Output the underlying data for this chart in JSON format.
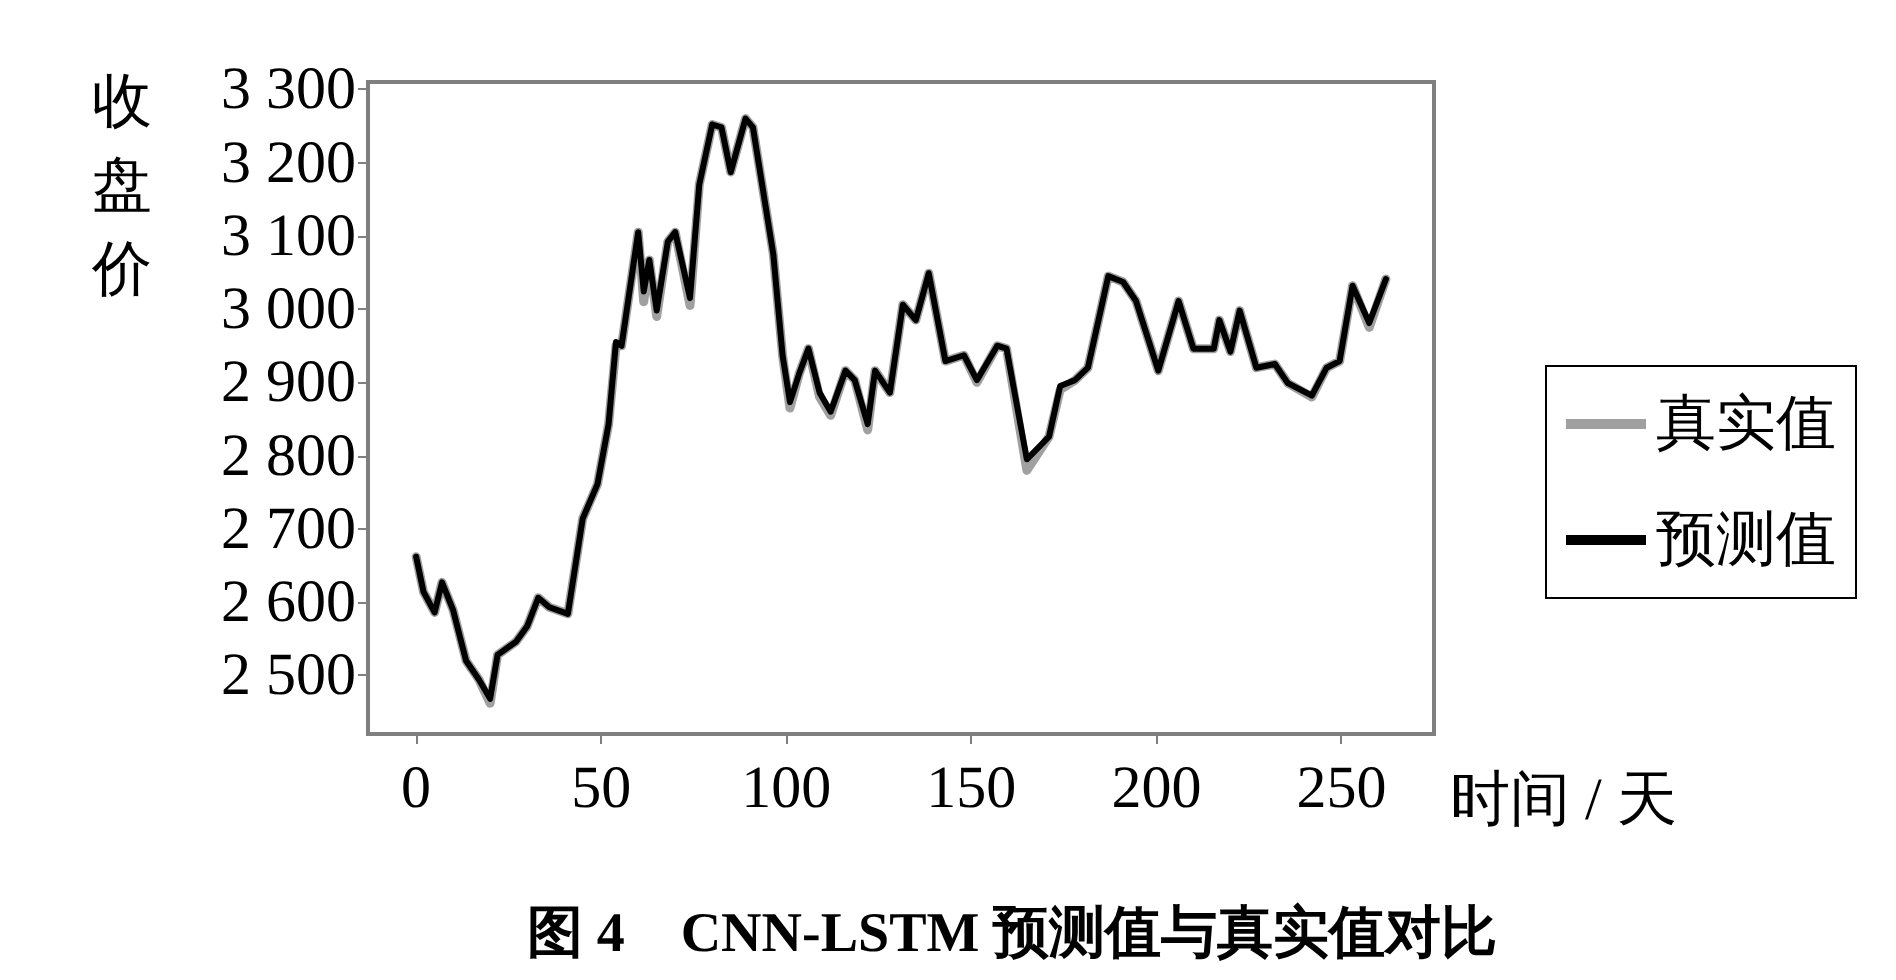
{
  "chart_data": {
    "type": "line",
    "title": "图 4　CNN-LSTM 预测值与真实值对比",
    "xlabel": "时间 / 天",
    "ylabel": "收盘价",
    "x": [
      0,
      2,
      5,
      7,
      10,
      13.5,
      17,
      20,
      22,
      27,
      30,
      33,
      36,
      41,
      45,
      49,
      52,
      54,
      55.5,
      60,
      61.5,
      63,
      65,
      68,
      70,
      74,
      76.5,
      80,
      82.5,
      85,
      89,
      91,
      96.5,
      99,
      101,
      103.5,
      106,
      109,
      112,
      116,
      118.5,
      122,
      124,
      128,
      131.5,
      135,
      138.5,
      143,
      148,
      151.5,
      157,
      159.5,
      165,
      171,
      174,
      178,
      181.5,
      187,
      191,
      194.5,
      200.5,
      206,
      210,
      215.5,
      217,
      220,
      222.5,
      227,
      232,
      235.5,
      242,
      246,
      249.5,
      253,
      257.5,
      262
    ],
    "series": [
      {
        "name": "真实值",
        "color": "#a0a0a0",
        "values": [
          2662,
          2614,
          2586,
          2627,
          2589,
          2520,
          2494,
          2462,
          2528,
          2546,
          2567,
          2606,
          2593,
          2584,
          2714,
          2761,
          2843,
          2950,
          2950,
          3105,
          3010,
          3067,
          2990,
          3092,
          3105,
          3005,
          3170,
          3252,
          3248,
          3187,
          3260,
          3248,
          3075,
          2937,
          2865,
          2912,
          2946,
          2880,
          2855,
          2916,
          2903,
          2835,
          2916,
          2886,
          3006,
          2985,
          3049,
          2929,
          2937,
          2900,
          2950,
          2946,
          2780,
          2826,
          2890,
          2903,
          2920,
          3045,
          3037,
          3011,
          2916,
          3011,
          2946,
          2946,
          2985,
          2942,
          2998,
          2920,
          2925,
          2899,
          2880,
          2920,
          2929,
          3032,
          2975,
          3041
        ]
      },
      {
        "name": "预测值",
        "color": "#000000",
        "values": [
          2662,
          2614,
          2586,
          2627,
          2589,
          2520,
          2494,
          2468,
          2528,
          2546,
          2567,
          2606,
          2593,
          2584,
          2714,
          2761,
          2843,
          2955,
          2950,
          3105,
          3024,
          3067,
          2998,
          3092,
          3105,
          3015,
          3170,
          3252,
          3248,
          3187,
          3260,
          3248,
          3075,
          2937,
          2873,
          2912,
          2946,
          2886,
          2860,
          2916,
          2903,
          2843,
          2916,
          2886,
          3006,
          2985,
          3049,
          2929,
          2937,
          2903,
          2950,
          2946,
          2795,
          2826,
          2895,
          2903,
          2920,
          3045,
          3037,
          3011,
          2916,
          3011,
          2946,
          2946,
          2985,
          2942,
          2998,
          2920,
          2925,
          2899,
          2882,
          2920,
          2929,
          3032,
          2981,
          3041
        ]
      }
    ],
    "xlim": [
      -13,
      275
    ],
    "xticks": [
      0,
      50,
      100,
      150,
      200,
      250
    ],
    "ylim": [
      2420,
      3310
    ],
    "yticks": [
      {
        "value": 2500,
        "label": "2 500"
      },
      {
        "value": 2600,
        "label": "2 600"
      },
      {
        "value": 2700,
        "label": "2 700"
      },
      {
        "value": 2800,
        "label": "2 800"
      },
      {
        "value": 2900,
        "label": "2 900"
      },
      {
        "value": 3000,
        "label": "3 000"
      },
      {
        "value": 3100,
        "label": "3 100"
      },
      {
        "value": 3200,
        "label": "3 200"
      },
      {
        "value": 3300,
        "label": "3 300"
      }
    ],
    "grid": false,
    "legend": "right",
    "marker": "none",
    "line_style": "solid"
  }
}
